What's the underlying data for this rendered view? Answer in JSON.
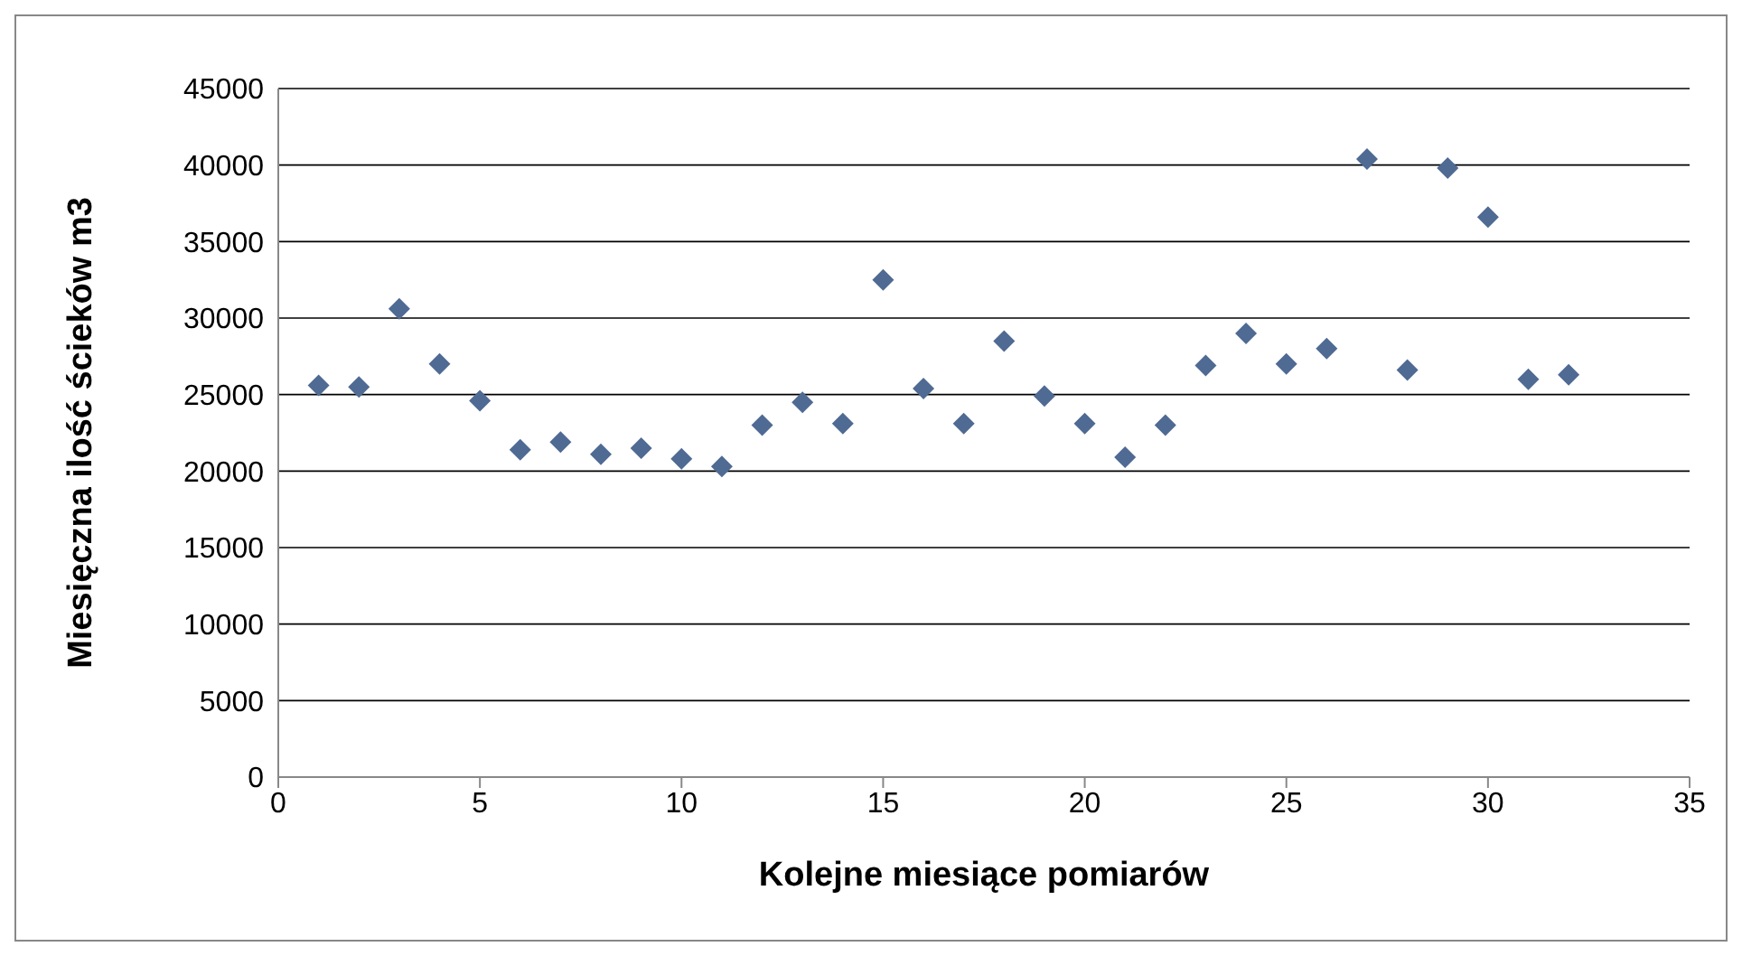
{
  "chart_data": {
    "type": "scatter",
    "xlabel": "Kolejne miesiące pomiarów",
    "ylabel": "Miesięczna ilość ścieków m3",
    "x": [
      1,
      2,
      3,
      4,
      5,
      6,
      7,
      8,
      9,
      10,
      11,
      12,
      13,
      14,
      15,
      16,
      17,
      18,
      19,
      20,
      21,
      22,
      23,
      24,
      25,
      26,
      27,
      28,
      29,
      30,
      31,
      32
    ],
    "series": [
      {
        "color": "#4f6a93",
        "values": [
          25600,
          25500,
          30600,
          27000,
          24600,
          21400,
          21900,
          21100,
          21500,
          20800,
          20300,
          23000,
          24500,
          23100,
          32500,
          25400,
          23100,
          28500,
          24900,
          23100,
          20900,
          23000,
          26900,
          29000,
          27000,
          28000,
          40400,
          26600,
          39800,
          36600,
          26000,
          26300
        ]
      }
    ],
    "xlim": [
      0,
      35
    ],
    "xticks": [
      0,
      5,
      10,
      15,
      20,
      25,
      30,
      35
    ],
    "ylim": [
      0,
      45000
    ],
    "yticks": [
      0,
      5000,
      10000,
      15000,
      20000,
      25000,
      30000,
      35000,
      40000,
      45000
    ],
    "grid": "y",
    "marker": "diamond"
  }
}
